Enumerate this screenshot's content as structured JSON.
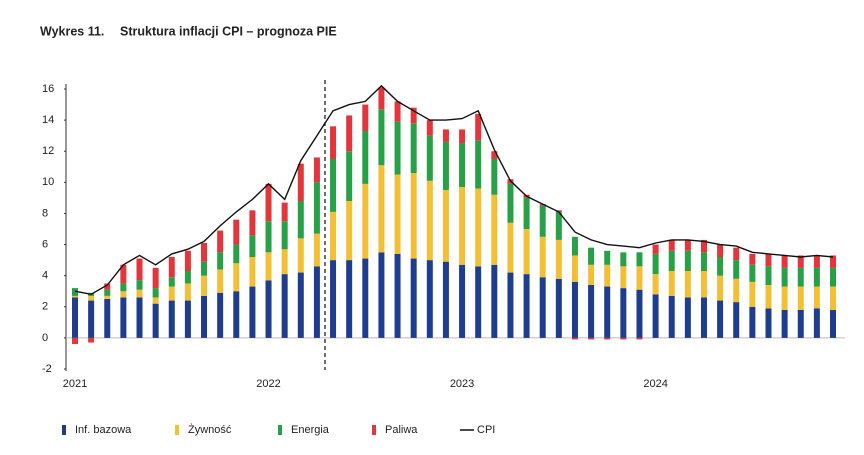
{
  "chart_data": {
    "type": "stacked-bar-line",
    "label": "Wykres 11.",
    "title": "Struktura inflacji CPI – prognoza PIE",
    "categories": [
      "2021",
      null,
      null,
      null,
      null,
      null,
      null,
      null,
      null,
      null,
      null,
      null,
      "2022",
      null,
      null,
      null,
      null,
      null,
      null,
      null,
      null,
      null,
      null,
      null,
      "2023",
      null,
      null,
      null,
      null,
      null,
      null,
      null,
      null,
      null,
      null,
      null,
      "2024",
      null,
      null,
      null,
      null,
      null,
      null,
      null,
      null,
      null,
      null,
      null
    ],
    "series": [
      {
        "name": "Inf. bazowa",
        "color": "#1f3d8f",
        "values": [
          2.6,
          2.4,
          2.5,
          2.6,
          2.6,
          2.2,
          2.4,
          2.4,
          2.7,
          2.9,
          3.0,
          3.3,
          3.7,
          4.1,
          4.2,
          4.6,
          5.0,
          5.0,
          5.1,
          5.5,
          5.4,
          5.1,
          5.0,
          4.9,
          4.7,
          4.6,
          4.7,
          4.2,
          4.1,
          3.9,
          3.8,
          3.6,
          3.4,
          3.3,
          3.2,
          3.1,
          2.8,
          2.7,
          2.6,
          2.6,
          2.4,
          2.3,
          2.0,
          1.9,
          1.8,
          1.8,
          1.9,
          1.8
        ]
      },
      {
        "name": "Żywność",
        "color": "#f2c037",
        "values": [
          0.1,
          0.3,
          0.2,
          0.4,
          0.5,
          0.4,
          0.9,
          1.1,
          1.3,
          1.5,
          1.8,
          1.9,
          1.8,
          1.6,
          2.2,
          2.1,
          3.1,
          3.8,
          4.8,
          5.6,
          5.1,
          5.5,
          5.1,
          4.6,
          5.0,
          5.0,
          4.5,
          3.2,
          2.9,
          2.6,
          2.5,
          1.7,
          1.3,
          1.4,
          1.4,
          1.5,
          1.3,
          1.6,
          1.7,
          1.7,
          1.6,
          1.5,
          1.6,
          1.5,
          1.5,
          1.5,
          1.4,
          1.5
        ]
      },
      {
        "name": "Energia",
        "color": "#27a048",
        "values": [
          0.5,
          0.2,
          0.4,
          0.5,
          0.6,
          0.6,
          0.6,
          0.8,
          0.9,
          1.1,
          1.2,
          1.4,
          2.0,
          1.8,
          2.4,
          3.3,
          3.4,
          3.2,
          3.4,
          3.6,
          3.4,
          3.2,
          2.9,
          3.1,
          2.8,
          3.1,
          2.3,
          2.5,
          2.0,
          2.0,
          1.8,
          1.2,
          1.1,
          0.9,
          0.9,
          0.9,
          1.3,
          1.3,
          1.3,
          1.2,
          1.2,
          1.2,
          1.1,
          1.2,
          1.2,
          1.2,
          1.2,
          1.2
        ]
      },
      {
        "name": "Paliwa",
        "color": "#e0363c",
        "values": [
          -0.4,
          -0.3,
          0.4,
          1.2,
          1.4,
          1.3,
          1.3,
          1.3,
          1.2,
          1.4,
          1.6,
          1.6,
          2.4,
          1.2,
          2.4,
          1.6,
          2.1,
          2.3,
          1.7,
          1.4,
          1.3,
          1.0,
          1.0,
          0.8,
          0.9,
          1.7,
          0.5,
          0.3,
          0.2,
          0.1,
          0.1,
          -0.1,
          -0.1,
          -0.1,
          -0.1,
          -0.1,
          0.6,
          0.7,
          0.7,
          0.8,
          0.8,
          0.8,
          0.7,
          0.8,
          0.8,
          0.8,
          0.8,
          0.8
        ]
      },
      {
        "name": "CPI",
        "type": "line",
        "color": "#111111",
        "values": [
          3.0,
          2.8,
          3.4,
          4.7,
          5.3,
          4.7,
          5.4,
          5.7,
          6.2,
          7.2,
          8.1,
          8.9,
          9.9,
          8.9,
          11.4,
          13.0,
          14.6,
          15.0,
          15.2,
          16.2,
          15.2,
          14.6,
          14.0,
          14.0,
          14.1,
          14.6,
          12.1,
          10.1,
          9.1,
          8.6,
          8.1,
          6.8,
          6.3,
          6.0,
          5.9,
          5.8,
          6.1,
          6.3,
          6.3,
          6.2,
          6.0,
          5.9,
          5.5,
          5.4,
          5.3,
          5.2,
          5.3,
          5.2
        ]
      }
    ],
    "ylim": [
      -2,
      16
    ],
    "yticks": [
      -2,
      0,
      2,
      4,
      6,
      8,
      10,
      12,
      14,
      16
    ]
  }
}
